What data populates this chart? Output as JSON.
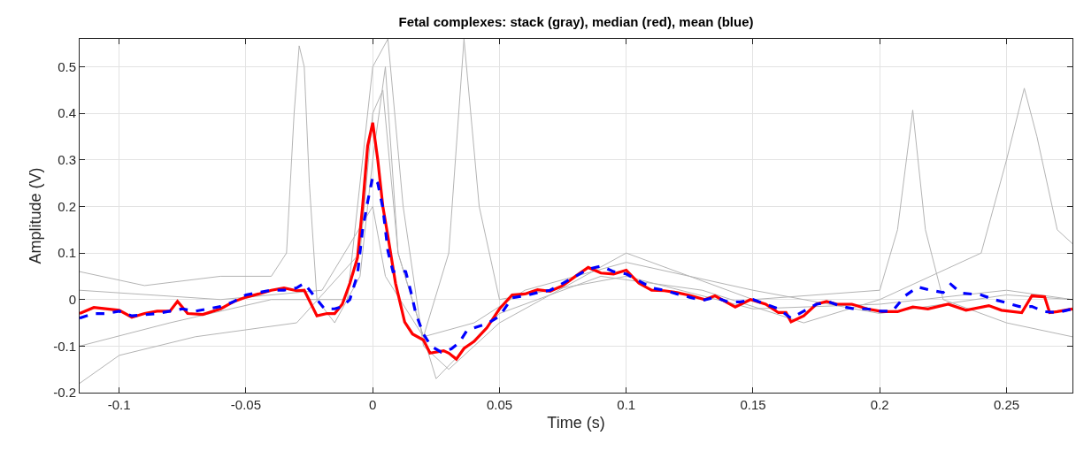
{
  "chart_data": {
    "type": "line",
    "title": "Fetal complexes: stack (gray), median (red), mean (blue)",
    "xlabel": "Time (s)",
    "ylabel": "Amplitude (V)",
    "xlim": [
      -0.1156,
      0.276
    ],
    "ylim": [
      -0.2,
      0.56
    ],
    "xticks": [
      -0.1,
      -0.05,
      0,
      0.05,
      0.1,
      0.15,
      0.2,
      0.25
    ],
    "yticks": [
      -0.2,
      -0.1,
      0,
      0.1,
      0.2,
      0.3,
      0.4,
      0.5
    ],
    "grid": true,
    "marker": "none",
    "series": [
      {
        "color": "#b4b4b4",
        "line_style": "solid",
        "x": [
          -0.1156,
          -0.09,
          -0.06,
          -0.04,
          -0.034,
          -0.031,
          -0.029,
          -0.027,
          -0.025,
          -0.022,
          -0.015,
          -0.005,
          0.0,
          0.005,
          0.01,
          0.02,
          0.04,
          0.06,
          0.1,
          0.15,
          0.2,
          0.25,
          0.276
        ],
        "values": [
          0.06,
          0.03,
          0.05,
          0.05,
          0.1,
          0.4,
          0.545,
          0.5,
          0.25,
          0.0,
          -0.05,
          0.05,
          0.3,
          0.5,
          0.1,
          -0.08,
          -0.05,
          0.02,
          0.08,
          0.02,
          -0.03,
          0.01,
          0.0
        ]
      },
      {
        "color": "#b4b4b4",
        "line_style": "solid",
        "x": [
          -0.1156,
          -0.08,
          -0.04,
          -0.01,
          0.0,
          0.006,
          0.012,
          0.02,
          0.03,
          0.05,
          0.1,
          0.15,
          0.2,
          0.207,
          0.213,
          0.218,
          0.225,
          0.25,
          0.276
        ],
        "values": [
          -0.1,
          -0.05,
          0.0,
          0.0,
          0.5,
          0.56,
          0.2,
          -0.1,
          -0.15,
          -0.05,
          0.1,
          0.0,
          0.02,
          0.15,
          0.407,
          0.15,
          0.0,
          -0.05,
          -0.08
        ]
      },
      {
        "color": "#b4b4b4",
        "line_style": "solid",
        "x": [
          -0.1156,
          -0.1,
          -0.07,
          -0.03,
          -0.005,
          0.0,
          0.004,
          0.01,
          0.025,
          0.05,
          0.09,
          0.13,
          0.17,
          0.2,
          0.24,
          0.25,
          0.257,
          0.262,
          0.27,
          0.276
        ],
        "values": [
          -0.18,
          -0.12,
          -0.08,
          -0.05,
          0.1,
          0.4,
          0.45,
          0.1,
          -0.17,
          -0.03,
          0.05,
          0.02,
          -0.05,
          0.0,
          0.1,
          0.3,
          0.454,
          0.35,
          0.15,
          0.12
        ]
      },
      {
        "color": "#b4b4b4",
        "line_style": "solid",
        "x": [
          -0.1156,
          -0.06,
          -0.02,
          0.0,
          0.005,
          0.02,
          0.03,
          0.036,
          0.042,
          0.05,
          0.1,
          0.15,
          0.2,
          0.25,
          0.276
        ],
        "values": [
          0.02,
          0.0,
          0.02,
          0.2,
          0.05,
          -0.08,
          0.1,
          0.56,
          0.2,
          0.0,
          0.05,
          -0.02,
          -0.01,
          0.02,
          0.0
        ]
      },
      {
        "color": "#ff0000",
        "line_style": "solid",
        "x": [
          -0.1156,
          -0.11,
          -0.1,
          -0.095,
          -0.09,
          -0.085,
          -0.08,
          -0.077,
          -0.073,
          -0.067,
          -0.06,
          -0.055,
          -0.05,
          -0.045,
          -0.04,
          -0.035,
          -0.03,
          -0.027,
          -0.022,
          -0.018,
          -0.015,
          -0.012,
          -0.009,
          -0.006,
          -0.004,
          -0.002,
          0.0,
          0.002,
          0.004,
          0.006,
          0.009,
          0.0126,
          0.0157,
          0.02,
          0.0226,
          0.028,
          0.03,
          0.033,
          0.036,
          0.04,
          0.045,
          0.05,
          0.055,
          0.06,
          0.065,
          0.07,
          0.075,
          0.08,
          0.085,
          0.09,
          0.095,
          0.1,
          0.105,
          0.11,
          0.115,
          0.12,
          0.125,
          0.131,
          0.135,
          0.143,
          0.149,
          0.155,
          0.16,
          0.163,
          0.165,
          0.17,
          0.175,
          0.179,
          0.183,
          0.189,
          0.195,
          0.201,
          0.207,
          0.213,
          0.219,
          0.227,
          0.234,
          0.243,
          0.248,
          0.256,
          0.26,
          0.265,
          0.267,
          0.27,
          0.276
        ],
        "values": [
          -0.03,
          -0.017,
          -0.023,
          -0.038,
          -0.03,
          -0.025,
          -0.025,
          -0.004,
          -0.03,
          -0.032,
          -0.02,
          -0.005,
          0.005,
          0.012,
          0.02,
          0.025,
          0.019,
          0.02,
          -0.035,
          -0.03,
          -0.03,
          -0.01,
          0.035,
          0.09,
          0.2,
          0.33,
          0.38,
          0.3,
          0.2,
          0.136,
          0.035,
          -0.048,
          -0.074,
          -0.087,
          -0.115,
          -0.11,
          -0.115,
          -0.128,
          -0.105,
          -0.09,
          -0.061,
          -0.02,
          0.01,
          0.012,
          0.021,
          0.018,
          0.03,
          0.05,
          0.069,
          0.057,
          0.055,
          0.063,
          0.035,
          0.02,
          0.019,
          0.015,
          0.009,
          0.0,
          0.008,
          -0.016,
          0.0,
          -0.01,
          -0.028,
          -0.028,
          -0.048,
          -0.035,
          -0.01,
          -0.004,
          -0.01,
          -0.01,
          -0.02,
          -0.026,
          -0.026,
          -0.016,
          -0.02,
          -0.01,
          -0.023,
          -0.013,
          -0.023,
          -0.028,
          0.008,
          0.006,
          -0.028,
          -0.026,
          -0.02
        ]
      },
      {
        "color": "#0000ff",
        "line_style": "dashed",
        "x": [
          -0.1156,
          -0.11,
          -0.105,
          -0.1,
          -0.095,
          -0.085,
          -0.08,
          -0.075,
          -0.07,
          -0.06,
          -0.055,
          -0.05,
          -0.045,
          -0.04,
          -0.035,
          -0.03,
          -0.027,
          -0.022,
          -0.019,
          -0.015,
          -0.012,
          -0.009,
          -0.006,
          -0.004,
          -0.002,
          0.0,
          0.002,
          0.004,
          0.006,
          0.008,
          0.011,
          0.013,
          0.015,
          0.017,
          0.02,
          0.023,
          0.027,
          0.031,
          0.034,
          0.037,
          0.04,
          0.045,
          0.05,
          0.055,
          0.06,
          0.065,
          0.07,
          0.075,
          0.08,
          0.085,
          0.09,
          0.095,
          0.1,
          0.105,
          0.11,
          0.115,
          0.12,
          0.125,
          0.13,
          0.135,
          0.14,
          0.145,
          0.15,
          0.155,
          0.16,
          0.165,
          0.17,
          0.175,
          0.18,
          0.185,
          0.19,
          0.195,
          0.2,
          0.205,
          0.21,
          0.215,
          0.22,
          0.225,
          0.228,
          0.232,
          0.24,
          0.245,
          0.25,
          0.255,
          0.26,
          0.265,
          0.27,
          0.276
        ],
        "values": [
          -0.04,
          -0.03,
          -0.03,
          -0.025,
          -0.035,
          -0.03,
          -0.025,
          -0.02,
          -0.025,
          -0.015,
          -0.005,
          0.01,
          0.015,
          0.02,
          0.02,
          0.025,
          0.035,
          0.0,
          -0.02,
          -0.02,
          -0.015,
          0.0,
          0.054,
          0.15,
          0.21,
          0.263,
          0.25,
          0.197,
          0.104,
          0.06,
          0.063,
          0.06,
          0.018,
          -0.03,
          -0.074,
          -0.1,
          -0.113,
          -0.106,
          -0.093,
          -0.068,
          -0.061,
          -0.052,
          -0.036,
          0.004,
          0.008,
          0.015,
          0.02,
          0.035,
          0.05,
          0.065,
          0.072,
          0.06,
          0.055,
          0.04,
          0.025,
          0.02,
          0.012,
          0.005,
          -0.002,
          0.005,
          -0.005,
          -0.005,
          0.0,
          -0.01,
          -0.02,
          -0.04,
          -0.025,
          -0.01,
          -0.005,
          -0.015,
          -0.02,
          -0.02,
          -0.025,
          -0.025,
          0.008,
          0.027,
          0.02,
          0.015,
          0.033,
          0.014,
          0.01,
          0.0,
          -0.007,
          -0.015,
          -0.015,
          -0.026,
          -0.028,
          -0.02
        ]
      }
    ]
  }
}
